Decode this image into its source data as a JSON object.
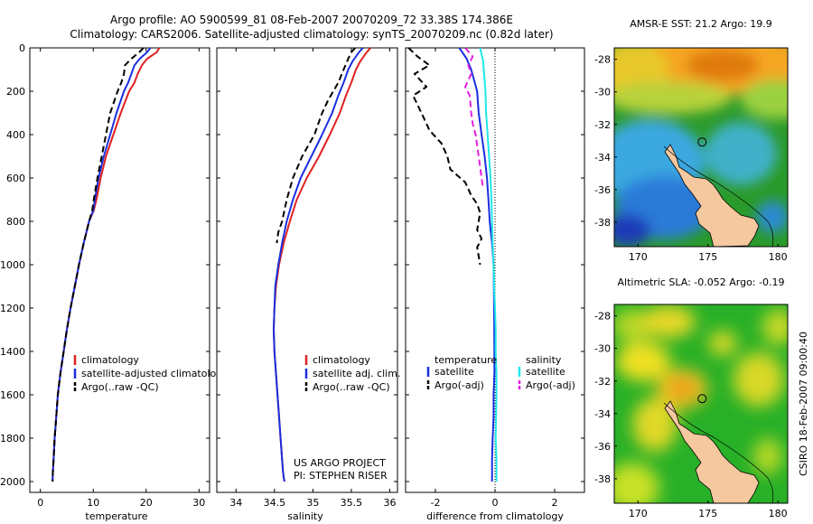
{
  "header": {
    "title_line1": "Argo profile: AO 5900599_81 08-Feb-2007 20070209_72 33.38S 174.386E",
    "title_line2": "Climatology: CARS2006. Satellite-adjusted climatology: synTS_20070209.nc (0.82d later)"
  },
  "credits": {
    "project": "US ARGO PROJECT",
    "pi": "PI: STEPHEN RISER",
    "stamp": "CSIRO 18-Feb-2007 09:00:40"
  },
  "colors": {
    "climatology": "#e02020",
    "satellite": "#1a2fe0",
    "argo": "#000000",
    "salinity_satellite": "#20e8e8",
    "salinity_argo": "#e020e0"
  },
  "chart_data": [
    {
      "id": "temperature",
      "type": "line",
      "xlabel": "temperature",
      "ylabel": "",
      "xlim": [
        -2,
        32
      ],
      "ylim": [
        2050,
        0
      ],
      "xticks": [
        0,
        10,
        20,
        30
      ],
      "yticks": [
        0,
        200,
        400,
        600,
        800,
        1000,
        1200,
        1400,
        1600,
        1800,
        2000
      ],
      "legend": [
        {
          "label": "climatology",
          "color": "#e02020",
          "style": "solid"
        },
        {
          "label": "satellite-adjusted climatology",
          "color": "#1a2fe0",
          "style": "solid"
        },
        {
          "label": "Argo(..raw -QC)",
          "color": "#000000",
          "style": "dashed"
        }
      ],
      "series": [
        {
          "name": "climatology",
          "color": "#e02020",
          "dash": false,
          "x": [
            22.5,
            22,
            20.2,
            19.2,
            18.4,
            17.8,
            16.8,
            15.2,
            13.8,
            12.4,
            11.4,
            10.6,
            10.1,
            9.2,
            8.2,
            7.3,
            6.5,
            5.7,
            5.0,
            4.4,
            3.8,
            3.3,
            3.0,
            2.7,
            2.5,
            2.35,
            2.3
          ],
          "y": [
            0,
            20,
            50,
            80,
            120,
            160,
            200,
            300,
            400,
            500,
            600,
            700,
            750,
            800,
            900,
            1000,
            1100,
            1200,
            1300,
            1400,
            1500,
            1600,
            1700,
            1800,
            1900,
            1960,
            2000
          ]
        },
        {
          "name": "satellite-adjusted climatology",
          "color": "#1a2fe0",
          "dash": false,
          "x": [
            20.8,
            20.2,
            18.8,
            17.8,
            17.2,
            16.6,
            15.8,
            14.4,
            13.2,
            12.0,
            11.0,
            10.3,
            10.0,
            9.2,
            8.2,
            7.3,
            6.5,
            5.7,
            5.0,
            4.4,
            3.8,
            3.3,
            3.0,
            2.7,
            2.5,
            2.35,
            2.3
          ],
          "y": [
            0,
            20,
            50,
            80,
            120,
            160,
            200,
            300,
            400,
            500,
            600,
            700,
            750,
            800,
            900,
            1000,
            1100,
            1200,
            1300,
            1400,
            1500,
            1600,
            1700,
            1800,
            1900,
            1960,
            2000
          ]
        },
        {
          "name": "Argo(..raw -QC)",
          "color": "#000000",
          "dash": true,
          "x": [
            19.5,
            18.7,
            17.2,
            16.0,
            15.8,
            15.3,
            14.6,
            13.2,
            12.4,
            11.6,
            10.8,
            10.1,
            9.8,
            9.2,
            8.2,
            7.3,
            6.5,
            5.7,
            5.0,
            4.4,
            3.8,
            3.3,
            3.0,
            2.7,
            2.5,
            2.35,
            2.3
          ],
          "y": [
            0,
            20,
            50,
            80,
            120,
            160,
            200,
            300,
            400,
            500,
            600,
            700,
            750,
            800,
            900,
            1000,
            1100,
            1200,
            1300,
            1400,
            1500,
            1600,
            1700,
            1800,
            1900,
            1960,
            2000
          ]
        }
      ]
    },
    {
      "id": "salinity",
      "type": "line",
      "xlabel": "salinity",
      "ylabel": "",
      "xlim": [
        33.75,
        36.1
      ],
      "ylim": [
        2050,
        0
      ],
      "xticks": [
        34,
        34.5,
        35,
        35.5,
        36
      ],
      "yticks": [
        0,
        200,
        400,
        600,
        800,
        1000,
        1200,
        1400,
        1600,
        1800,
        2000
      ],
      "legend": [
        {
          "label": "climatology",
          "color": "#e02020",
          "style": "solid"
        },
        {
          "label": "satellite adj. clim.",
          "color": "#1a2fe0",
          "style": "solid"
        },
        {
          "label": "Argo(..raw -QC)",
          "color": "#000000",
          "style": "dashed"
        }
      ],
      "series": [
        {
          "name": "climatology",
          "color": "#e02020",
          "dash": false,
          "x": [
            35.75,
            35.7,
            35.62,
            35.56,
            35.5,
            35.43,
            35.35,
            35.22,
            35.08,
            34.92,
            34.79,
            34.7,
            34.62,
            34.56,
            34.52,
            34.5,
            34.49,
            34.5,
            34.52,
            34.54,
            34.56,
            34.58,
            34.6,
            34.61,
            34.62,
            34.63
          ],
          "y": [
            0,
            20,
            60,
            100,
            160,
            220,
            300,
            400,
            500,
            600,
            700,
            800,
            900,
            1000,
            1100,
            1200,
            1300,
            1400,
            1500,
            1600,
            1700,
            1800,
            1900,
            1950,
            1980,
            2000
          ]
        },
        {
          "name": "satellite adj. clim.",
          "color": "#1a2fe0",
          "dash": false,
          "x": [
            35.65,
            35.6,
            35.52,
            35.46,
            35.4,
            35.33,
            35.25,
            35.12,
            34.98,
            34.84,
            34.74,
            34.66,
            34.6,
            34.55,
            34.51,
            34.5,
            34.49,
            34.5,
            34.52,
            34.54,
            34.56,
            34.58,
            34.6,
            34.61,
            34.62,
            34.63
          ],
          "y": [
            0,
            20,
            60,
            100,
            160,
            220,
            300,
            400,
            500,
            600,
            700,
            800,
            900,
            1000,
            1100,
            1200,
            1300,
            1400,
            1500,
            1600,
            1700,
            1800,
            1900,
            1950,
            1980,
            2000
          ]
        },
        {
          "name": "Argo(..raw -QC)",
          "color": "#000000",
          "dash": true,
          "x": [
            35.55,
            35.5,
            35.46,
            35.4,
            35.33,
            35.2,
            35.12,
            35.02,
            34.86,
            34.74,
            34.66,
            34.6,
            34.55,
            34.53
          ],
          "y": [
            0,
            20,
            50,
            100,
            160,
            240,
            300,
            400,
            500,
            600,
            700,
            800,
            850,
            900
          ]
        }
      ]
    },
    {
      "id": "difference",
      "type": "line",
      "xlabel": "difference from climatology",
      "ylabel": "",
      "xlim": [
        -3,
        3
      ],
      "ylim": [
        2050,
        0
      ],
      "xticks": [
        -2,
        0,
        2
      ],
      "yticks": [
        0,
        200,
        400,
        600,
        800,
        1000,
        1200,
        1400,
        1600,
        1800,
        2000
      ],
      "legend_headers": [
        "temperature",
        "salinity"
      ],
      "legend": [
        {
          "label": "satellite",
          "color": "#1a2fe0",
          "style": "solid"
        },
        {
          "label": "Argo(-adj)",
          "color": "#000000",
          "style": "dashed"
        },
        {
          "label": "satellite",
          "color": "#20e8e8",
          "style": "solid"
        },
        {
          "label": "Argo(-adj)",
          "color": "#e020e0",
          "style": "dashed"
        }
      ],
      "series": [
        {
          "name": "temperature satellite",
          "color": "#1a2fe0",
          "dash": false,
          "x": [
            -1.2,
            -0.95,
            -0.8,
            -0.7,
            -0.6,
            -0.55,
            -0.45,
            -0.35,
            -0.27,
            -0.22,
            -0.18,
            -0.1,
            -0.05,
            -0.03,
            -0.02,
            -0.02,
            -0.05,
            -0.05,
            -0.08,
            -0.1,
            -0.1
          ],
          "y": [
            0,
            50,
            100,
            150,
            200,
            300,
            400,
            500,
            600,
            700,
            800,
            900,
            1000,
            1200,
            1400,
            1500,
            1600,
            1700,
            1800,
            1900,
            2000
          ]
        },
        {
          "name": "temperature Argo(-adj)",
          "color": "#000000",
          "dash": true,
          "x": [
            -2.9,
            -2.6,
            -2.2,
            -2.7,
            -2.3,
            -2.75,
            -2.4,
            -2.2,
            -1.8,
            -1.6,
            -1.5,
            -1.0,
            -0.8,
            -0.6,
            -0.5,
            -0.55,
            -0.6,
            -0.45,
            -0.6,
            -0.55,
            -0.5
          ],
          "y": [
            0,
            40,
            80,
            120,
            180,
            220,
            320,
            380,
            440,
            500,
            560,
            620,
            680,
            720,
            760,
            800,
            840,
            880,
            920,
            960,
            1000
          ]
        },
        {
          "name": "salinity satellite",
          "color": "#20e8e8",
          "dash": false,
          "x": [
            -0.5,
            -0.45,
            -0.4,
            -0.38,
            -0.35,
            -0.32,
            -0.3,
            -0.25,
            -0.2,
            -0.15,
            -0.12,
            -0.1,
            -0.08,
            -0.05,
            -0.03,
            0.0,
            0.02,
            0.02,
            0.05,
            0.05,
            0.02,
            0.05,
            0.05
          ],
          "y": [
            0,
            30,
            60,
            100,
            150,
            200,
            300,
            400,
            500,
            600,
            700,
            800,
            900,
            1000,
            1100,
            1200,
            1300,
            1400,
            1500,
            1600,
            1800,
            1900,
            2000
          ]
        },
        {
          "name": "salinity Argo(-adj)",
          "color": "#e020e0",
          "dash": true,
          "x": [
            -1.0,
            -0.75,
            -0.9,
            -0.8,
            -1.0,
            -0.85,
            -0.8,
            -0.75,
            -0.65,
            -0.6,
            -0.55,
            -0.5,
            -0.45,
            -0.4
          ],
          "y": [
            0,
            40,
            80,
            120,
            180,
            220,
            300,
            350,
            400,
            450,
            500,
            550,
            600,
            650
          ]
        }
      ]
    },
    {
      "id": "amsre-sst-map",
      "type": "heatmap",
      "title": "AMSR-E SST: 21.2 Argo: 19.9",
      "xticks": [
        170,
        175,
        180
      ],
      "yticks": [
        -28,
        -30,
        -32,
        -34,
        -36,
        -38
      ],
      "xlim": [
        168.3,
        180.7
      ],
      "ylim": [
        -39.5,
        -27.3
      ],
      "marker": {
        "lon": 174.386,
        "lat": -33.38
      }
    },
    {
      "id": "altimetric-sla-map",
      "type": "heatmap",
      "title": "Altimetric SLA: -0.052 Argo: -0.19",
      "xticks": [
        170,
        175,
        180
      ],
      "yticks": [
        -28,
        -30,
        -32,
        -34,
        -36,
        -38
      ],
      "xlim": [
        168.3,
        180.7
      ],
      "ylim": [
        -39.5,
        -27.3
      ],
      "marker": {
        "lon": 174.386,
        "lat": -33.38
      }
    }
  ]
}
